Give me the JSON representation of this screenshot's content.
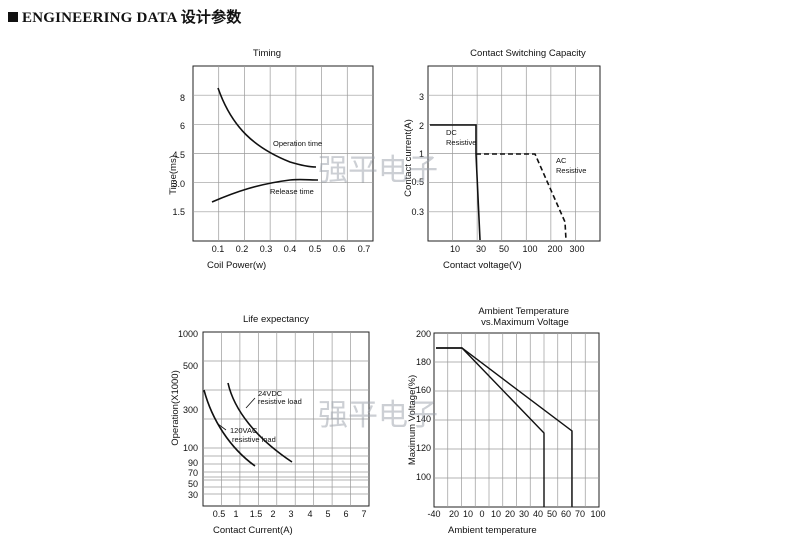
{
  "header": {
    "title": "ENGINEERING DATA 设计参数"
  },
  "watermark": "强平电子",
  "chart_data": [
    {
      "type": "line",
      "title": "Timing",
      "xlabel": "Coil Power(w)",
      "ylabel": "Time(ms)",
      "x_ticks": [
        "0.1",
        "0.2",
        "0.3",
        "0.4",
        "0.5",
        "0.6",
        "0.7"
      ],
      "y_ticks": [
        "1.5",
        "3.0",
        "4.5",
        "6",
        "8"
      ],
      "series": [
        {
          "name": "Operation time",
          "points": [
            [
              0.1,
              8.5
            ],
            [
              0.15,
              6.6
            ],
            [
              0.2,
              5.6
            ],
            [
              0.25,
              5.0
            ],
            [
              0.3,
              4.6
            ],
            [
              0.35,
              4.35
            ],
            [
              0.4,
              4.2
            ],
            [
              0.45,
              4.05
            ]
          ]
        },
        {
          "name": "Release time",
          "points": [
            [
              0.1,
              2.2
            ],
            [
              0.15,
              2.6
            ],
            [
              0.2,
              2.9
            ],
            [
              0.25,
              3.1
            ],
            [
              0.3,
              3.2
            ],
            [
              0.35,
              3.28
            ],
            [
              0.4,
              3.32
            ],
            [
              0.45,
              3.35
            ]
          ]
        }
      ]
    },
    {
      "type": "line",
      "title": "Contact Switching Capacity",
      "xlabel": "Contact voltage(V)",
      "ylabel": "Contact current(A)",
      "x_ticks": [
        "10",
        "30",
        "50",
        "100",
        "200",
        "300"
      ],
      "y_ticks": [
        "0.3",
        "0.5",
        "1",
        "2",
        "3"
      ],
      "series": [
        {
          "name": "DC Resistive",
          "points": [
            [
              5,
              2
            ],
            [
              28,
              2
            ],
            [
              28,
              1
            ],
            [
              30,
              0.3
            ]
          ]
        },
        {
          "name": "AC Resistive",
          "points": [
            [
              28,
              1
            ],
            [
              120,
              1
            ],
            [
              250,
              0.3
            ]
          ]
        }
      ]
    },
    {
      "type": "line",
      "title": "Life expectancy",
      "xlabel": "Contact Current(A)",
      "ylabel": "Operation(X1000)",
      "x_ticks": [
        "0.5",
        "1",
        "1.5",
        "2",
        "3",
        "4",
        "5",
        "6",
        "7"
      ],
      "y_ticks": [
        "30",
        "50",
        "70",
        "90",
        "100",
        "300",
        "500",
        "1000"
      ],
      "series": [
        {
          "name": "24VDC resistive load",
          "points": [
            [
              0.5,
              400
            ],
            [
              1,
              250
            ],
            [
              1.5,
              150
            ],
            [
              2,
              110
            ],
            [
              3,
              72
            ]
          ]
        },
        {
          "name": "120VAC resistive load",
          "points": [
            [
              0.3,
              380
            ],
            [
              0.6,
              180
            ],
            [
              1,
              110
            ],
            [
              1.5,
              72
            ]
          ]
        }
      ]
    },
    {
      "type": "line",
      "title": "Ambient Temperature vs.Maximum Voltage",
      "xlabel": "Ambient temperature",
      "ylabel": "Maximum Voltage(%)",
      "x_ticks": [
        "-40",
        "20",
        "10",
        "0",
        "10",
        "20",
        "30",
        "40",
        "50",
        "60",
        "70",
        "80",
        "90",
        "100"
      ],
      "y_ticks": [
        "100",
        "120",
        "140",
        "160",
        "180",
        "200"
      ],
      "series": [
        {
          "name": "",
          "points": [
            [
              -40,
              190
            ],
            [
              -20,
              190
            ],
            [
              70,
              133
            ],
            [
              70,
              80
            ]
          ]
        },
        {
          "name": "",
          "points": [
            [
              -40,
              190
            ],
            [
              -20,
              190
            ],
            [
              85,
              133
            ],
            [
              85,
              80
            ]
          ]
        }
      ]
    }
  ],
  "labels": {
    "timing_operation": "Operation time",
    "timing_release": "Release time",
    "csc_dc_1": "DC",
    "csc_dc_2": "Resistive",
    "csc_ac_1": "AC",
    "csc_ac_2": "Resistive",
    "life_24_1": "24VDC",
    "life_24_2": "resistive load",
    "life_120_1": "120VAC",
    "life_120_2": "resistive load"
  }
}
